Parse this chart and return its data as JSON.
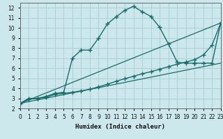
{
  "xlabel": "Humidex (Indice chaleur)",
  "xlim": [
    0,
    23
  ],
  "ylim": [
    2,
    12.5
  ],
  "xticks": [
    0,
    1,
    2,
    3,
    4,
    5,
    6,
    7,
    8,
    9,
    10,
    11,
    12,
    13,
    14,
    15,
    16,
    17,
    18,
    19,
    20,
    21,
    22,
    23
  ],
  "yticks": [
    2,
    3,
    4,
    5,
    6,
    7,
    8,
    9,
    10,
    11,
    12
  ],
  "bg_color": "#cce8ec",
  "grid_color": "#aad0d6",
  "line_color": "#1a6b6b",
  "curve1_x": [
    0,
    1,
    2,
    3,
    4,
    5,
    6,
    7,
    8,
    9,
    10,
    11,
    12,
    13,
    14,
    15,
    16,
    17,
    18,
    19,
    20,
    21,
    22,
    23
  ],
  "curve1_y": [
    2.5,
    3.0,
    3.0,
    3.2,
    3.5,
    3.6,
    7.0,
    7.8,
    7.8,
    9.0,
    10.4,
    11.1,
    11.75,
    12.15,
    11.6,
    11.15,
    10.05,
    8.4,
    6.6,
    6.5,
    6.5,
    6.5,
    6.5,
    10.5
  ],
  "curve1_break": 20,
  "curve2_x": [
    0,
    1,
    2,
    3,
    4,
    5,
    6,
    7,
    8,
    9,
    10,
    11,
    12,
    13,
    14,
    15,
    16,
    17,
    18,
    19,
    20,
    21,
    22,
    23
  ],
  "curve2_y": [
    2.5,
    2.9,
    3.0,
    3.1,
    3.4,
    3.5,
    3.6,
    3.75,
    3.9,
    4.15,
    4.4,
    4.7,
    4.95,
    5.2,
    5.45,
    5.65,
    5.9,
    6.15,
    6.4,
    6.6,
    6.85,
    7.3,
    8.3,
    10.5
  ],
  "line1_x": [
    0,
    23
  ],
  "line1_y": [
    2.5,
    10.5
  ],
  "line2_x": [
    0,
    23
  ],
  "line2_y": [
    2.5,
    6.5
  ]
}
